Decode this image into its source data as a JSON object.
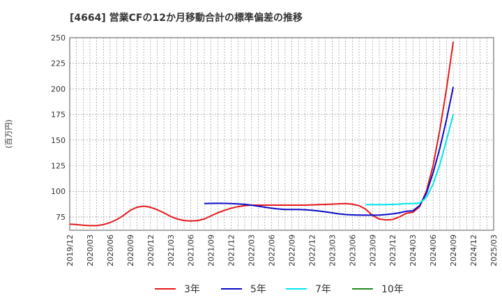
{
  "chart_data": {
    "type": "line",
    "title": "[4664]  営業CFの12か月移動合計の標準偏差の推移",
    "ylabel": "(百万円)",
    "xlabel": "",
    "ylim": [
      62,
      250
    ],
    "yticks": [
      75,
      100,
      125,
      150,
      175,
      200,
      225,
      250
    ],
    "xticks": [
      "2019/12",
      "2020/03",
      "2020/06",
      "2020/09",
      "2020/12",
      "2021/03",
      "2021/06",
      "2021/09",
      "2021/12",
      "2022/03",
      "2022/06",
      "2022/09",
      "2022/12",
      "2023/03",
      "2023/06",
      "2023/09",
      "2023/12",
      "2024/03",
      "2024/06",
      "2024/09",
      "2024/12",
      "2025/03"
    ],
    "grid": true,
    "legend_position": "bottom",
    "series": [
      {
        "name": "3年",
        "color": "#e31a1c",
        "x": [
          "2019/12",
          "2020/01",
          "2020/02",
          "2020/03",
          "2020/04",
          "2020/05",
          "2020/06",
          "2020/07",
          "2020/08",
          "2020/09",
          "2020/10",
          "2020/11",
          "2020/12",
          "2021/01",
          "2021/02",
          "2021/03",
          "2021/04",
          "2021/05",
          "2021/06",
          "2021/07",
          "2021/08",
          "2021/09",
          "2021/10",
          "2021/11",
          "2021/12",
          "2022/01",
          "2022/02",
          "2022/03",
          "2022/04",
          "2022/05",
          "2022/06",
          "2022/07",
          "2022/08",
          "2022/09",
          "2022/10",
          "2022/11",
          "2022/12",
          "2023/01",
          "2023/02",
          "2023/03",
          "2023/04",
          "2023/05",
          "2023/06",
          "2023/07",
          "2023/08",
          "2023/09",
          "2023/10",
          "2023/11",
          "2023/12",
          "2024/01",
          "2024/02",
          "2024/03",
          "2024/04",
          "2024/05",
          "2024/06",
          "2024/07",
          "2024/08",
          "2024/09"
        ],
        "values": [
          68,
          67.5,
          67,
          66.5,
          66.5,
          67.5,
          69.5,
          72.5,
          76.5,
          81.5,
          84.5,
          85.5,
          84.5,
          82,
          79,
          75.5,
          73,
          71.5,
          71,
          71.5,
          73,
          76,
          79,
          81.5,
          83.5,
          85,
          86,
          86.5,
          86.5,
          86.5,
          86.5,
          86.5,
          86.5,
          86.5,
          86.5,
          86.5,
          86.8,
          87,
          87.2,
          87.5,
          87.8,
          88,
          87.5,
          86,
          82.5,
          76.5,
          73,
          72,
          72.5,
          75,
          78.5,
          79.5,
          85,
          100,
          125,
          160,
          200,
          246
        ]
      },
      {
        "name": "5年",
        "color": "#0a0ac8",
        "x": [
          "2021/08",
          "2021/09",
          "2021/10",
          "2021/11",
          "2021/12",
          "2022/01",
          "2022/02",
          "2022/03",
          "2022/04",
          "2022/05",
          "2022/06",
          "2022/07",
          "2022/08",
          "2022/09",
          "2022/10",
          "2022/11",
          "2022/12",
          "2023/01",
          "2023/02",
          "2023/03",
          "2023/04",
          "2023/05",
          "2023/06",
          "2023/07",
          "2023/08",
          "2023/09",
          "2023/10",
          "2023/11",
          "2023/12",
          "2024/01",
          "2024/02",
          "2024/03",
          "2024/04",
          "2024/05",
          "2024/06",
          "2024/07",
          "2024/08",
          "2024/09"
        ],
        "values": [
          88,
          88.2,
          88.3,
          88.2,
          88,
          87.7,
          87.3,
          86.5,
          85.5,
          84.5,
          83.5,
          82.8,
          82.3,
          82.2,
          82.2,
          82,
          81.5,
          80.8,
          80,
          79,
          78,
          77.3,
          77,
          76.8,
          76.7,
          76.7,
          76.8,
          77.3,
          78,
          79,
          80.5,
          81,
          86,
          98,
          118,
          142,
          170,
          202
        ]
      },
      {
        "name": "7年",
        "color": "#00e5ee",
        "x": [
          "2023/08",
          "2023/09",
          "2023/10",
          "2023/11",
          "2023/12",
          "2024/01",
          "2024/02",
          "2024/03",
          "2024/04",
          "2024/05",
          "2024/06",
          "2024/07",
          "2024/08",
          "2024/09"
        ],
        "values": [
          87,
          87,
          87,
          87,
          87.2,
          87.5,
          88,
          88,
          88.5,
          94,
          107,
          126,
          150,
          175
        ]
      },
      {
        "name": "10年",
        "color": "#228b22",
        "x": [],
        "values": []
      }
    ]
  }
}
